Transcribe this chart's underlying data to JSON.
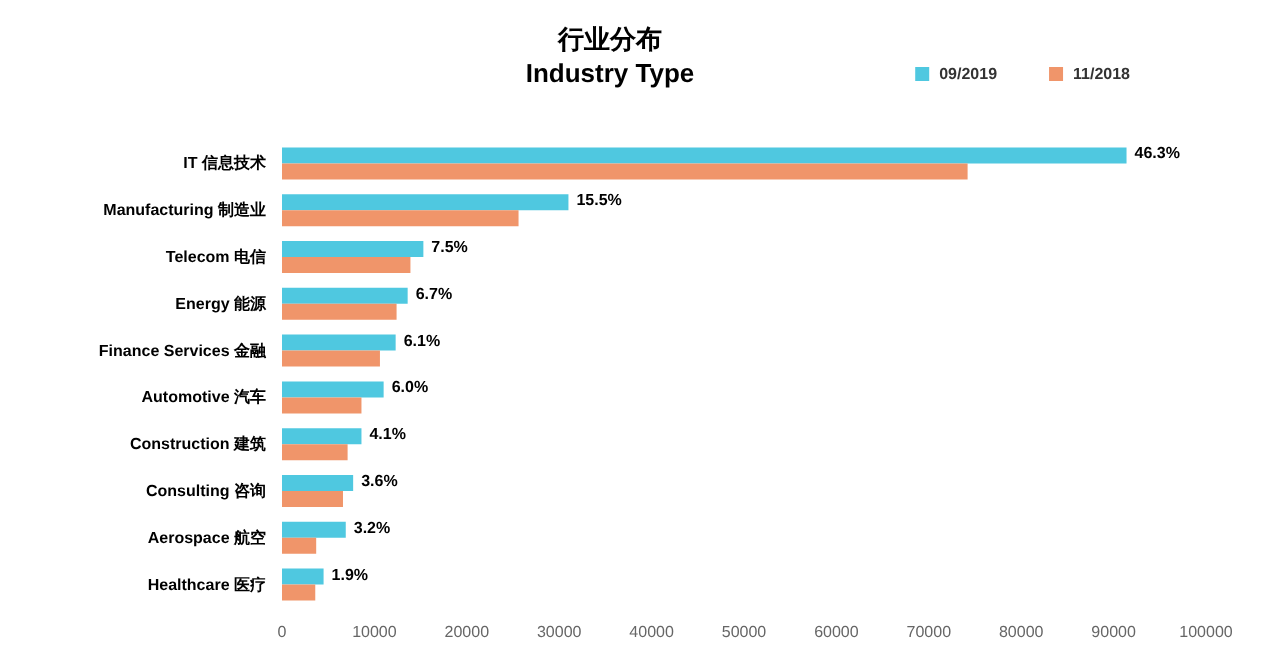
{
  "chart_data": {
    "type": "bar",
    "orientation": "horizontal",
    "title": "行业分布",
    "subtitle": "Industry Type",
    "categories": [
      "IT 信息技术",
      "Manufacturing 制造业",
      "Telecom 电信",
      "Energy 能源",
      "Finance Services 金融",
      "Automotive 汽车",
      "Construction 建筑",
      "Consulting 咨询",
      "Aerospace 航空",
      "Healthcare 医疗"
    ],
    "series": [
      {
        "name": "09/2019",
        "color": "#4fc8e0",
        "values": [
          91400,
          31000,
          15300,
          13600,
          12300,
          11000,
          8600,
          7700,
          6900,
          4500
        ]
      },
      {
        "name": "11/2018",
        "color": "#f0956a",
        "values": [
          74200,
          25600,
          13900,
          12400,
          10600,
          8600,
          7100,
          6600,
          3700,
          3600
        ]
      }
    ],
    "xlim": [
      0,
      100000
    ],
    "xticks": [
      0,
      10000,
      20000,
      30000,
      40000,
      50000,
      60000,
      70000,
      80000,
      90000,
      100000
    ],
    "annotations": [
      {
        "text": "46.3%",
        "x": 91400,
        "y": "IT 信息技术"
      },
      {
        "text": "15.5%",
        "x": 31000,
        "y": "Manufacturing 制造业"
      },
      {
        "text": "7.5%",
        "x": 15300,
        "y": "Telecom 电信"
      },
      {
        "text": "6.7%",
        "x": 13600,
        "y": "Energy 能源"
      },
      {
        "text": "6.1%",
        "x": 12300,
        "y": "Finance Services 金融"
      },
      {
        "text": "6.0%",
        "x": 11000,
        "y": "Automotive 汽车"
      },
      {
        "text": "4.1%",
        "x": 8600,
        "y": "Construction 建筑"
      },
      {
        "text": "3.6%",
        "x": 7700,
        "y": "Consulting 咨询"
      },
      {
        "text": "3.2%",
        "x": 6900,
        "y": "Aerospace 航空"
      },
      {
        "text": "1.9%",
        "x": 4500,
        "y": "Healthcare 医疗"
      }
    ],
    "grid": false,
    "legend": "top right"
  }
}
